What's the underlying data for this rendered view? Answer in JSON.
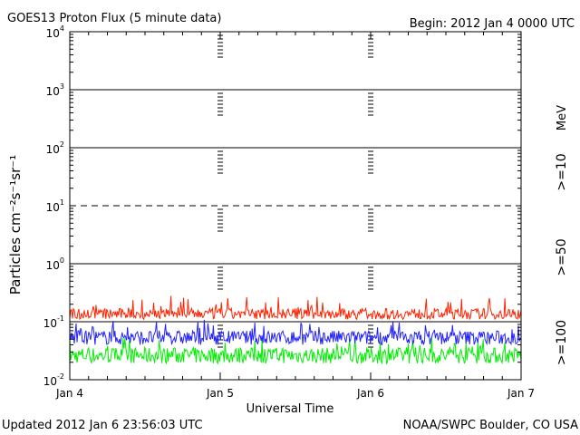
{
  "header": {
    "title": "GOES13 Proton Flux (5 minute data)",
    "begin": "Begin: 2012 Jan 4 0000 UTC"
  },
  "footer": {
    "updated": "Updated 2012 Jan  6 23:56:03 UTC",
    "credit": "NOAA/SWPC Boulder, CO USA"
  },
  "chart_data": {
    "type": "line",
    "title": "GOES13 Proton Flux (5 minute data)",
    "xlabel": "Universal Time",
    "ylabel": "Particles cm⁻²s⁻¹sr⁻¹",
    "yscale": "log",
    "ylim": [
      0.01,
      10000
    ],
    "xlim": [
      0,
      72
    ],
    "x_ticks": [
      {
        "x": 0,
        "label": "Jan 4"
      },
      {
        "x": 24,
        "label": "Jan 5"
      },
      {
        "x": 48,
        "label": "Jan 6"
      },
      {
        "x": 72,
        "label": "Jan 7"
      }
    ],
    "y_ticks": [
      {
        "value": 10000,
        "base": "10",
        "exp": "4"
      },
      {
        "value": 1000,
        "base": "10",
        "exp": "3"
      },
      {
        "value": 100,
        "base": "10",
        "exp": "2"
      },
      {
        "value": 10,
        "base": "10",
        "exp": "1"
      },
      {
        "value": 1,
        "base": "10",
        "exp": "0"
      },
      {
        "value": 0.1,
        "base": "10",
        "exp": "-1"
      },
      {
        "value": 0.01,
        "base": "10",
        "exp": "-2"
      }
    ],
    "threshold_line": 10,
    "unit_label": "MeV",
    "series": [
      {
        "name": ">=10",
        "color": "#ff2200",
        "typical": 0.15,
        "min": 0.11,
        "max": 0.28
      },
      {
        "name": ">=50",
        "color": "#2222ff",
        "typical": 0.06,
        "min": 0.04,
        "max": 0.11
      },
      {
        "name": ">=100",
        "color": "#00ee00",
        "typical": 0.03,
        "min": 0.019,
        "max": 0.055
      }
    ]
  }
}
